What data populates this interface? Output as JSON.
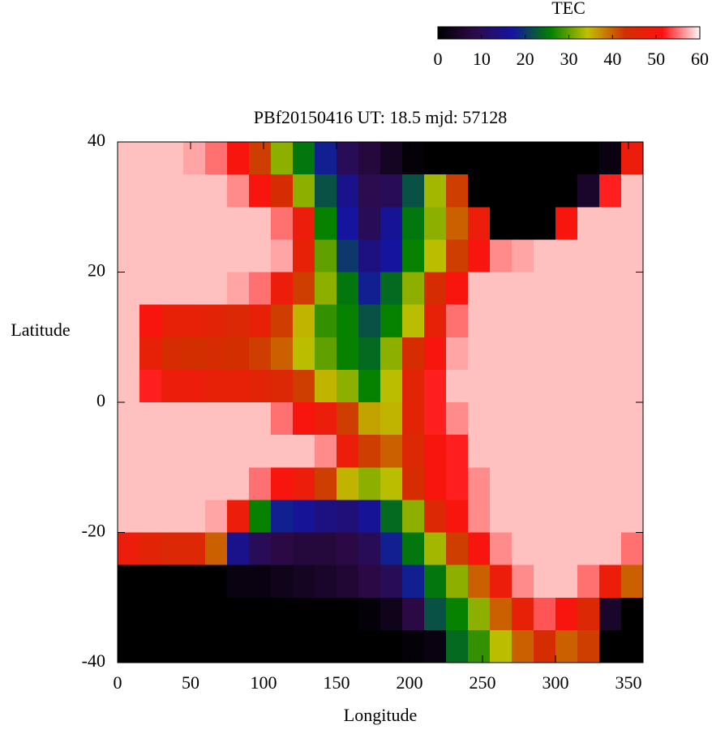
{
  "chart_data": {
    "type": "heatmap",
    "title": "PBf20150416  UT: 18.5  mjd: 57128",
    "xlabel": "Longitude",
    "ylabel": "Latitude",
    "colorbar_label": "TEC",
    "x": [
      7.5,
      22.5,
      37.5,
      52.5,
      67.5,
      82.5,
      97.5,
      112.5,
      127.5,
      142.5,
      157.5,
      172.5,
      187.5,
      202.5,
      217.5,
      232.5,
      247.5,
      262.5,
      277.5,
      292.5,
      307.5,
      322.5,
      337.5,
      352.5
    ],
    "y": [
      37.5,
      32.5,
      27.5,
      22.5,
      17.5,
      12.5,
      7.5,
      2.5,
      -2.5,
      -7.5,
      -12.5,
      -17.5,
      -22.5,
      -27.5,
      -32.5,
      -37.5
    ],
    "values": [
      [
        58,
        58,
        58,
        57,
        55,
        50,
        42,
        32,
        25,
        18,
        10,
        7,
        4,
        1,
        0,
        0,
        0,
        0,
        0,
        0,
        0,
        0,
        2,
        48
      ],
      [
        58,
        58,
        58,
        58,
        58,
        56,
        50,
        44,
        32,
        22,
        15,
        9,
        10,
        22,
        33,
        42,
        0,
        0,
        0,
        0,
        0,
        5,
        52,
        58
      ],
      [
        58,
        58,
        58,
        58,
        58,
        58,
        58,
        55,
        48,
        26,
        17,
        10,
        16,
        25,
        32,
        40,
        48,
        0,
        0,
        0,
        50,
        58,
        58,
        58
      ],
      [
        58,
        58,
        58,
        58,
        58,
        58,
        58,
        57,
        47,
        30,
        20,
        14,
        17,
        26,
        34,
        42,
        50,
        56,
        57,
        58,
        58,
        58,
        58,
        58
      ],
      [
        58,
        58,
        58,
        58,
        58,
        57,
        55,
        48,
        42,
        32,
        25,
        18,
        24,
        32,
        44,
        50,
        58,
        58,
        58,
        58,
        58,
        58,
        58,
        58
      ],
      [
        58,
        50,
        47,
        47,
        46,
        45,
        47,
        42,
        35,
        28,
        26,
        22,
        26,
        34,
        47,
        55,
        58,
        58,
        58,
        58,
        58,
        58,
        58,
        58
      ],
      [
        58,
        47,
        44,
        43,
        44,
        43,
        42,
        40,
        34,
        30,
        26,
        24,
        32,
        44,
        50,
        57,
        58,
        58,
        58,
        58,
        58,
        58,
        58,
        58
      ],
      [
        58,
        52,
        48,
        48,
        47,
        47,
        46,
        45,
        42,
        35,
        32,
        26,
        34,
        46,
        52,
        58,
        58,
        58,
        58,
        58,
        58,
        58,
        58,
        58
      ],
      [
        58,
        58,
        58,
        58,
        58,
        58,
        58,
        55,
        50,
        48,
        42,
        36,
        35,
        46,
        52,
        56,
        58,
        58,
        58,
        58,
        58,
        58,
        58,
        58
      ],
      [
        58,
        58,
        58,
        58,
        58,
        58,
        58,
        58,
        58,
        56,
        48,
        42,
        40,
        45,
        50,
        52,
        58,
        58,
        58,
        58,
        58,
        58,
        58,
        58
      ],
      [
        58,
        58,
        58,
        58,
        58,
        58,
        55,
        50,
        48,
        42,
        35,
        32,
        34,
        44,
        50,
        52,
        56,
        58,
        58,
        58,
        58,
        58,
        58,
        58
      ],
      [
        58,
        58,
        58,
        58,
        57,
        48,
        26,
        18,
        16,
        14,
        13,
        16,
        24,
        32,
        45,
        50,
        56,
        58,
        58,
        58,
        58,
        58,
        58,
        58
      ],
      [
        48,
        46,
        45,
        45,
        40,
        15,
        10,
        8,
        7,
        7,
        8,
        10,
        18,
        25,
        33,
        42,
        50,
        56,
        58,
        58,
        58,
        58,
        58,
        55
      ],
      [
        0,
        0,
        0,
        0,
        0,
        2,
        2,
        3,
        4,
        5,
        6,
        8,
        10,
        18,
        25,
        32,
        40,
        48,
        56,
        58,
        58,
        55,
        48,
        40
      ],
      [
        0,
        0,
        0,
        0,
        0,
        0,
        0,
        0,
        0,
        0,
        0,
        1,
        3,
        8,
        22,
        26,
        32,
        40,
        47,
        54,
        50,
        45,
        5,
        0
      ],
      [
        0,
        0,
        0,
        0,
        0,
        0,
        0,
        0,
        0,
        0,
        0,
        0,
        0,
        1,
        2,
        24,
        28,
        34,
        40,
        44,
        40,
        42,
        0,
        0
      ]
    ],
    "colorscale": [
      "#000000",
      "#2d0a4a",
      "#1414a0",
      "#008000",
      "#c0c000",
      "#d03000",
      "#ff1010",
      "#fff6f6"
    ],
    "zlim": [
      0,
      60
    ],
    "zticks": [
      0,
      10,
      20,
      30,
      40,
      50,
      60
    ],
    "xlim": [
      0,
      360
    ],
    "xticks": [
      0,
      50,
      100,
      150,
      200,
      250,
      300,
      350
    ],
    "ylim": [
      -40,
      40
    ],
    "yticks": [
      -40,
      -20,
      0,
      20,
      40
    ]
  }
}
